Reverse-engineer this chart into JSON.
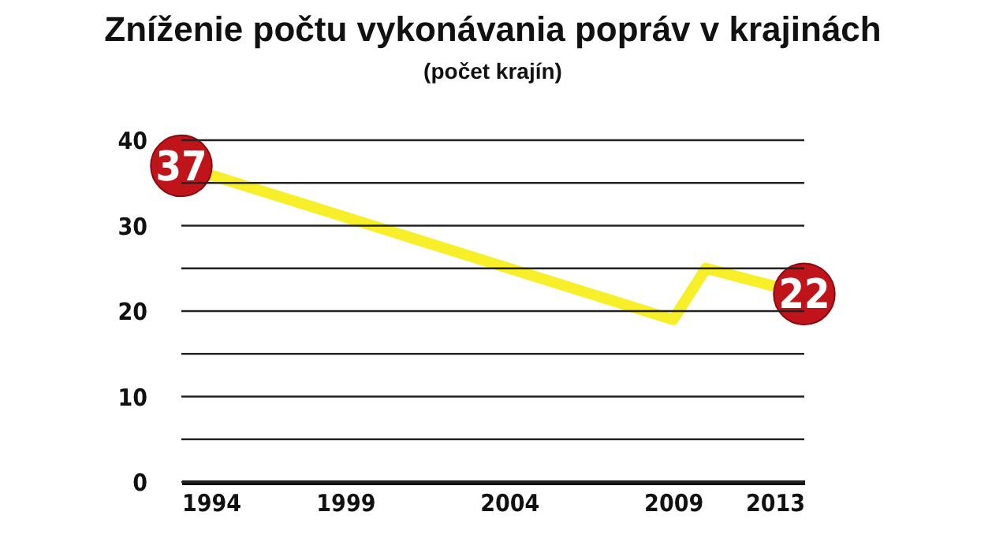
{
  "chart_data": {
    "type": "line",
    "title": "Zníženie počtu vykonávania popráv v krajinách",
    "subtitle": "(počet krajín)",
    "x": [
      1994,
      2009,
      2010,
      2013
    ],
    "series": [
      {
        "color": "#f7ef2a",
        "values": [
          37,
          19,
          25,
          22
        ],
        "value_labels": [
          "37",
          null,
          null,
          "22"
        ]
      }
    ],
    "xlim": [
      1994,
      2013
    ],
    "xticks": [
      1994,
      1999,
      2004,
      2009,
      2013
    ],
    "ylim": [
      0,
      40
    ],
    "yticks": [
      0,
      {
        "value": 5,
        "label": null
      },
      10,
      {
        "value": 15,
        "label": null
      },
      20,
      {
        "value": 25,
        "label": null
      },
      30,
      {
        "value": 35,
        "label": null
      },
      40
    ],
    "grid": "y"
  }
}
